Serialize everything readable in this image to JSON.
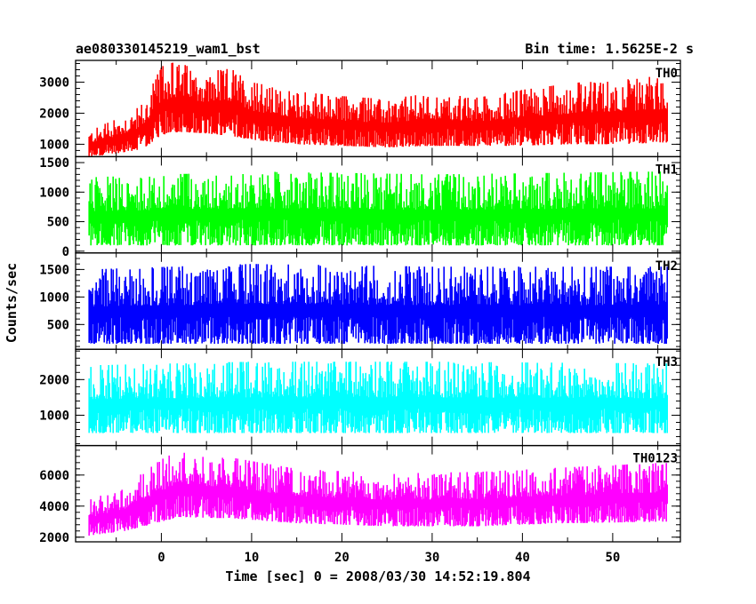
{
  "header": {
    "left_title": "ae080330145219_wam1_bst",
    "right_title": "Bin time: 1.5625E-2 s"
  },
  "chart_data": {
    "type": "line",
    "xlabel": "Time [sec] 0 = 2008/03/30 14:52:19.804",
    "ylabel": "Counts/sec",
    "xlim": [
      -9.5,
      57.5
    ],
    "x_ticks": [
      0,
      10,
      20,
      30,
      40,
      50
    ],
    "data_range": [
      -8,
      56
    ],
    "panels": [
      {
        "label": "TH0",
        "color": "#ff0000",
        "ylim": [
          600,
          3700
        ],
        "y_ticks": [
          1000,
          2000,
          3000
        ],
        "envelope": [
          {
            "x": -8,
            "lo": 600,
            "hi": 1450
          },
          {
            "x": -5,
            "lo": 700,
            "hi": 1800
          },
          {
            "x": -2,
            "lo": 850,
            "hi": 2300
          },
          {
            "x": 0,
            "lo": 1300,
            "hi": 3500
          },
          {
            "x": 2,
            "lo": 1400,
            "hi": 3700
          },
          {
            "x": 5,
            "lo": 1350,
            "hi": 3300
          },
          {
            "x": 8,
            "lo": 1250,
            "hi": 3500
          },
          {
            "x": 10,
            "lo": 1150,
            "hi": 3000
          },
          {
            "x": 15,
            "lo": 1000,
            "hi": 2700
          },
          {
            "x": 20,
            "lo": 950,
            "hi": 2550
          },
          {
            "x": 25,
            "lo": 900,
            "hi": 2450
          },
          {
            "x": 30,
            "lo": 950,
            "hi": 2650
          },
          {
            "x": 35,
            "lo": 950,
            "hi": 2500
          },
          {
            "x": 40,
            "lo": 950,
            "hi": 2750
          },
          {
            "x": 45,
            "lo": 1000,
            "hi": 2950
          },
          {
            "x": 50,
            "lo": 1000,
            "hi": 3100
          },
          {
            "x": 56,
            "lo": 1050,
            "hi": 3200
          }
        ]
      },
      {
        "label": "TH1",
        "color": "#00ff00",
        "ylim": [
          -30,
          1600
        ],
        "y_ticks": [
          0,
          500,
          1000,
          1500
        ],
        "envelope": [
          {
            "x": -8,
            "lo": 100,
            "hi": 1250
          },
          {
            "x": 10,
            "lo": 100,
            "hi": 1350
          },
          {
            "x": 30,
            "lo": 100,
            "hi": 1300
          },
          {
            "x": 56,
            "lo": 100,
            "hi": 1350
          }
        ]
      },
      {
        "label": "TH2",
        "color": "#0000ff",
        "ylim": [
          50,
          1800
        ],
        "y_ticks": [
          500,
          1000,
          1500
        ],
        "envelope": [
          {
            "x": -8,
            "lo": 150,
            "hi": 1500
          },
          {
            "x": 10,
            "lo": 150,
            "hi": 1600
          },
          {
            "x": 30,
            "lo": 150,
            "hi": 1550
          },
          {
            "x": 56,
            "lo": 150,
            "hi": 1550
          }
        ]
      },
      {
        "label": "TH3",
        "color": "#00ffff",
        "ylim": [
          150,
          2850
        ],
        "y_ticks": [
          1000,
          2000
        ],
        "envelope": [
          {
            "x": -8,
            "lo": 500,
            "hi": 2400
          },
          {
            "x": 10,
            "lo": 500,
            "hi": 2500
          },
          {
            "x": 30,
            "lo": 500,
            "hi": 2500
          },
          {
            "x": 56,
            "lo": 500,
            "hi": 2450
          }
        ]
      },
      {
        "label": "TH0123",
        "color": "#ff00ff",
        "ylim": [
          1700,
          7900
        ],
        "y_ticks": [
          2000,
          4000,
          6000
        ],
        "envelope": [
          {
            "x": -8,
            "lo": 2100,
            "hi": 4400
          },
          {
            "x": -4,
            "lo": 2400,
            "hi": 5300
          },
          {
            "x": 0,
            "lo": 3000,
            "hi": 7000
          },
          {
            "x": 2,
            "lo": 3300,
            "hi": 7600
          },
          {
            "x": 8,
            "lo": 3200,
            "hi": 7100
          },
          {
            "x": 15,
            "lo": 2900,
            "hi": 6400
          },
          {
            "x": 25,
            "lo": 2700,
            "hi": 6100
          },
          {
            "x": 35,
            "lo": 2700,
            "hi": 6200
          },
          {
            "x": 45,
            "lo": 2900,
            "hi": 6500
          },
          {
            "x": 56,
            "lo": 3000,
            "hi": 6800
          }
        ]
      }
    ]
  }
}
